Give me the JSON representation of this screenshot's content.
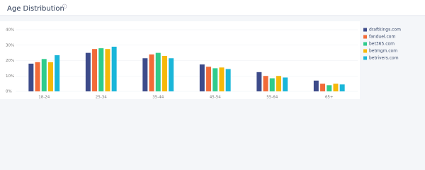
{
  "chart_data": {
    "type": "bar",
    "title": "Age Distribution",
    "categories": [
      "18-24",
      "25-34",
      "35-44",
      "45-54",
      "55-64",
      "65+"
    ],
    "series": [
      {
        "name": "draftkings.com",
        "color": "#3d4b8a",
        "values": [
          18,
          25,
          21.5,
          17.5,
          12.5,
          7
        ]
      },
      {
        "name": "fanduel.com",
        "color": "#f26b38",
        "values": [
          19,
          27.5,
          24,
          16,
          10,
          5
        ]
      },
      {
        "name": "bet365.com",
        "color": "#2fcb8c",
        "values": [
          21,
          28,
          25,
          15,
          8.5,
          4
        ]
      },
      {
        "name": "betmgm.com",
        "color": "#f6b80a",
        "values": [
          19,
          27.5,
          23,
          15.5,
          10,
          5
        ]
      },
      {
        "name": "betrivers.com",
        "color": "#1ab6d9",
        "values": [
          23.5,
          29,
          21.5,
          14.5,
          9,
          4.5
        ]
      }
    ],
    "ylim": [
      0,
      40
    ],
    "yticks": [
      {
        "value": 0,
        "label": "0%"
      },
      {
        "value": 10,
        "label": "10%"
      },
      {
        "value": 20,
        "label": "20%"
      },
      {
        "value": 30,
        "label": "30%"
      },
      {
        "value": 40,
        "label": "40%"
      }
    ],
    "grid": true
  }
}
